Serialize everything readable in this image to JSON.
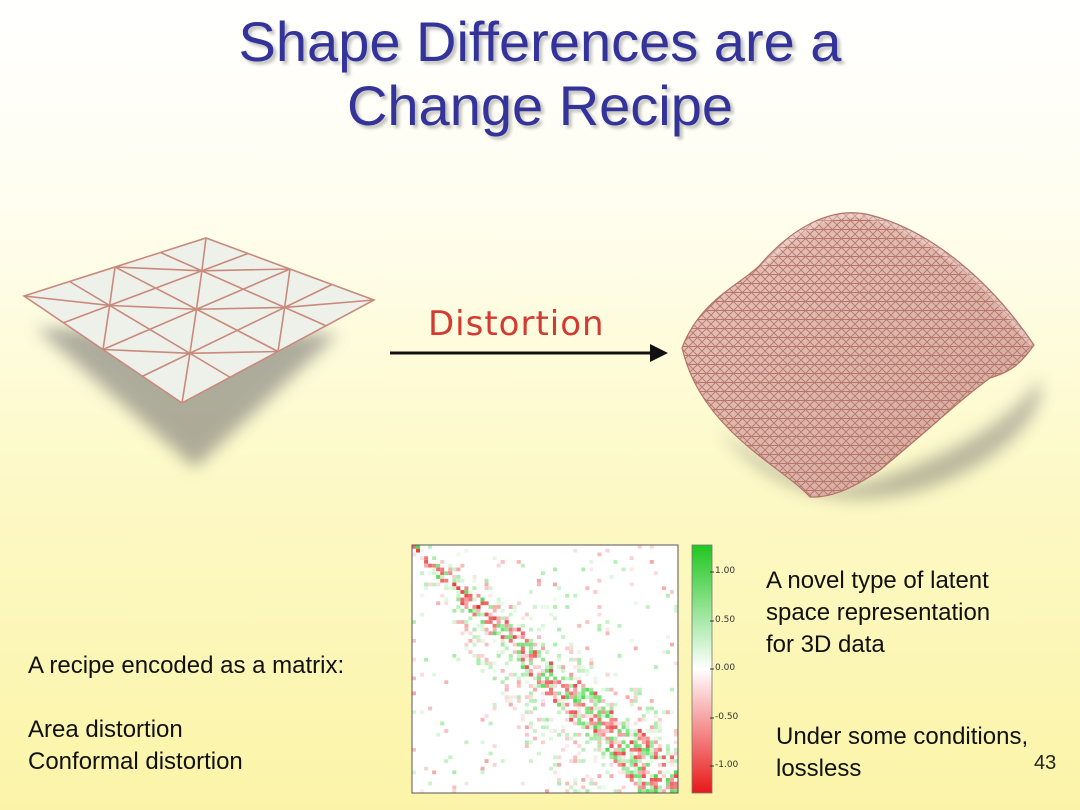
{
  "slide": {
    "title_line1": "Shape Differences are a",
    "title_line2": "Change Recipe",
    "arrow_label": "Distortion",
    "recipe_heading": "A recipe encoded as a matrix:",
    "recipe_items": [
      "Area distortion",
      "Conformal distortion"
    ],
    "novel_text": [
      "A novel type of latent",
      "space representation",
      "for 3D data"
    ],
    "condition_text": [
      "Under some conditions,",
      "lossless"
    ],
    "page_number": "43"
  },
  "colorbar": {
    "ticks": [
      "1.00",
      "0.50",
      "0.00",
      "-0.50",
      "-1.00"
    ],
    "colors": {
      "positive": "#2ecc2e",
      "zero": "#ffffff",
      "negative": "#e82020"
    }
  },
  "colors": {
    "title": "#33339a",
    "accent": "#d23a32",
    "mesh_edge": "#c98a7c"
  }
}
